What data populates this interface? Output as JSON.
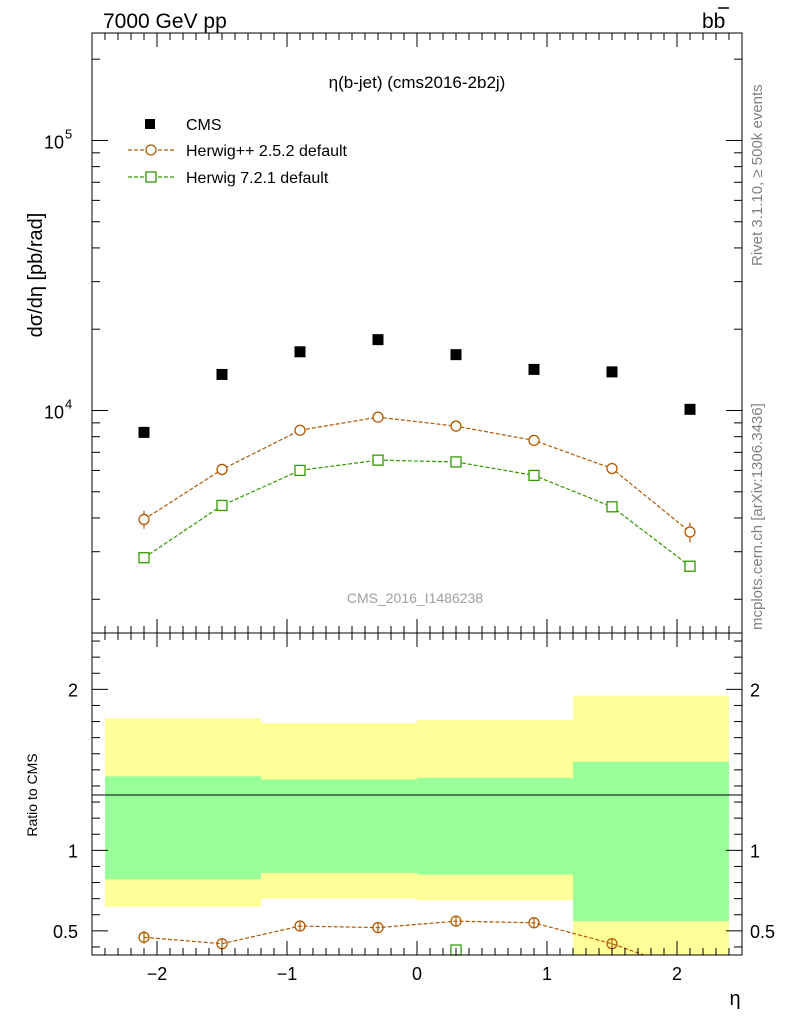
{
  "header": {
    "left_title": "7000 GeV pp",
    "right_title": "bb",
    "plot_title": "η(b-jet) (cms2016-2b2j)",
    "watermark": "CMS_2016_I1486238",
    "side_label_top": "Rivet 3.1.10, ≥ 500k events",
    "side_label_bottom": "mcplots.cern.ch [arXiv:1306.3436]"
  },
  "chart_data": [
    {
      "type": "scatter",
      "ylabel": "dσ/dη [pb/rad]",
      "yscale": "log",
      "ylim": [
        1500,
        250000
      ],
      "xlim": [
        -2.5,
        2.5
      ],
      "yticks": [
        {
          "value": 10000,
          "label": "10",
          "exp": "4"
        },
        {
          "value": 100000,
          "label": "10",
          "exp": "5"
        }
      ],
      "x": [
        -2.1,
        -1.5,
        -0.9,
        -0.3,
        0.3,
        0.9,
        1.5,
        2.1
      ],
      "legend": [
        "CMS",
        "Herwig++ 2.5.2 default",
        "Herwig 7.2.1 default"
      ],
      "legend_position": "top-left",
      "series": [
        {
          "name": "CMS",
          "color": "#000000",
          "marker": "square-filled",
          "values": [
            8300,
            13600,
            16500,
            18300,
            16100,
            14200,
            13900,
            10100
          ]
        },
        {
          "name": "Herwig++ 2.5.2 default",
          "color": "#b35900",
          "marker": "circle-open",
          "line": "dashed",
          "values": [
            3950,
            6050,
            8450,
            9450,
            8750,
            7750,
            6100,
            3550
          ],
          "errors": [
            300,
            300,
            300,
            300,
            300,
            300,
            300,
            300
          ]
        },
        {
          "name": "Herwig 7.2.1 default",
          "color": "#339900",
          "marker": "square-open",
          "line": "dashed",
          "values": [
            2850,
            4450,
            6000,
            6550,
            6450,
            5750,
            4400,
            2650
          ]
        }
      ]
    },
    {
      "type": "scatter",
      "ylabel": "Ratio to CMS",
      "xlabel": "η",
      "ylim": [
        0.35,
        2.35
      ],
      "xlim": [
        -2.5,
        2.5
      ],
      "xticks": [
        {
          "value": -2,
          "label": "−2"
        },
        {
          "value": -1,
          "label": "−1"
        },
        {
          "value": 0,
          "label": "0"
        },
        {
          "value": 1,
          "label": "1"
        },
        {
          "value": 2,
          "label": "2"
        }
      ],
      "yticks": [
        {
          "value": 0.5,
          "label": "0.5"
        },
        {
          "value": 1,
          "label": "1"
        },
        {
          "value": 2,
          "label": "2"
        }
      ],
      "bands": [
        {
          "xlo": -2.4,
          "xhi": -1.2,
          "yellow": [
            0.65,
            1.82
          ],
          "green": [
            0.82,
            1.46
          ]
        },
        {
          "xlo": -1.2,
          "xhi": 0.0,
          "yellow": [
            0.7,
            1.79
          ],
          "green": [
            0.86,
            1.44
          ]
        },
        {
          "xlo": 0.0,
          "xhi": 1.2,
          "yellow": [
            0.69,
            1.81
          ],
          "green": [
            0.85,
            1.45
          ]
        },
        {
          "xlo": 1.2,
          "xhi": 2.4,
          "yellow": [
            0.35,
            1.96
          ],
          "green": [
            0.56,
            1.55
          ]
        }
      ],
      "band_colors": {
        "yellow": "#ffff99",
        "green": "#99ff99"
      },
      "x": [
        -2.1,
        -1.5,
        -0.9,
        -0.3,
        0.3,
        0.9,
        1.5
      ],
      "series": [
        {
          "name": "Herwig++ 2.5.2 default",
          "color": "#b35900",
          "values": [
            0.46,
            0.42,
            0.53,
            0.52,
            0.56,
            0.55,
            0.42
          ],
          "errors": [
            0.04,
            0.035,
            0.035,
            0.035,
            0.035,
            0.035,
            0.035
          ],
          "continues_below": true
        },
        {
          "name": "Herwig 7.2.1 default",
          "color": "#339900",
          "x": [
            0.3
          ],
          "values": [
            0.38
          ]
        }
      ]
    }
  ]
}
